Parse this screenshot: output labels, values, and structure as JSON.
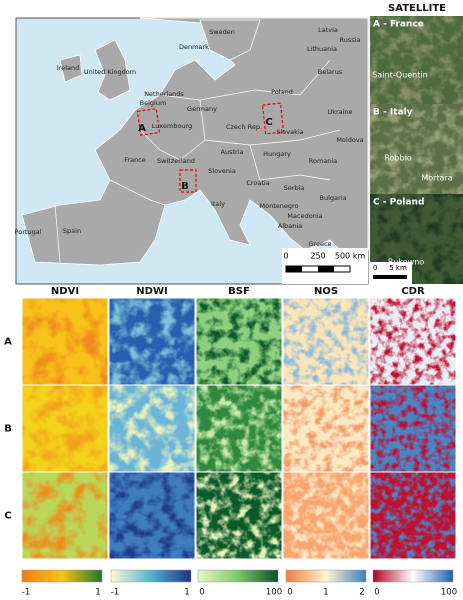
{
  "map": {
    "countries": [
      "Sweden",
      "Latvia",
      "Russia",
      "Denmark",
      "Lithuania",
      "Ireland",
      "United Kingdom",
      "Netherlands",
      "Belarus",
      "Poland",
      "Germany",
      "Belgium",
      "Luxembourg",
      "Ukraine",
      "Czech Rep.",
      "Slovakia",
      "Moldova",
      "France",
      "Switzerland",
      "Austria",
      "Hungary",
      "Romania",
      "Slovenia",
      "Croatia",
      "Serbia",
      "Bulgaria",
      "Italy",
      "Montenegro",
      "Macedonia",
      "Albania",
      "Greece",
      "Portugal",
      "Spain"
    ],
    "sites": [
      "A",
      "B",
      "C"
    ],
    "scale_bar": [
      "0",
      "250",
      "500 km"
    ]
  },
  "satellite": {
    "title": "SATELLITE",
    "panels": [
      {
        "label": "A - France",
        "places": [
          "Saint-Quentin"
        ]
      },
      {
        "label": "B - Italy",
        "places": [
          "Robbio",
          "Mortara"
        ]
      },
      {
        "label": "C - Poland",
        "places": [
          "Bukowno"
        ]
      }
    ],
    "scale_bar": [
      "0",
      "5 km"
    ]
  },
  "grid": {
    "columns": [
      "NDVI",
      "NDWI",
      "BSF",
      "NOS",
      "CDR"
    ],
    "rows": [
      "A",
      "B",
      "C"
    ],
    "colorbars": [
      [
        "-1",
        "1"
      ],
      [
        "-1",
        "1"
      ],
      [
        "0",
        "100"
      ],
      [
        "0",
        "1",
        "2"
      ],
      [
        "0",
        "100"
      ]
    ]
  }
}
